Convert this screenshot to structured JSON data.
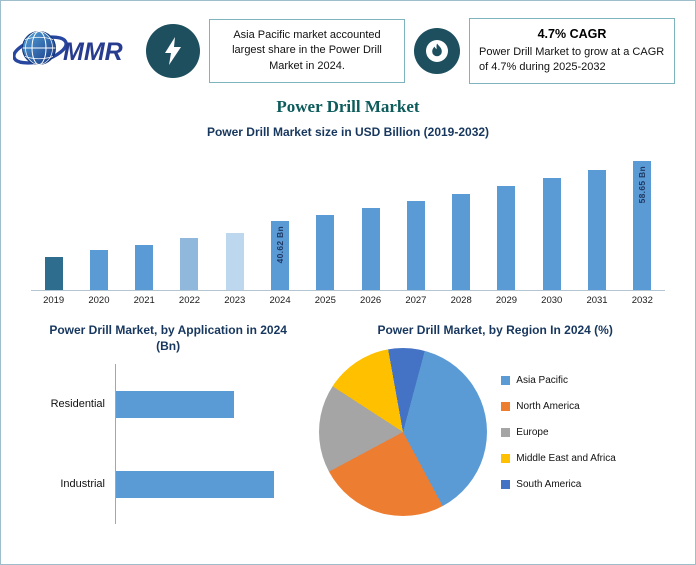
{
  "header": {
    "logo_text": "MMR",
    "left_note": "Asia Pacific market accounted largest share in the Power Drill Market in 2024.",
    "cagr_title": "4.7% CAGR",
    "cagr_note": "Power Drill Market to grow at a CAGR of 4.7% during 2025-2032"
  },
  "page_title": "Power Drill Market",
  "colors": {
    "badge_teal": "#1d4f5e",
    "title_teal": "#0d5c5c",
    "heading_navy": "#17375e",
    "bar_blue": "#5b9bd5"
  },
  "chart_data": [
    {
      "type": "bar",
      "title": "Power Drill Market size in USD Billion (2019-2032)",
      "categories": [
        "2019",
        "2020",
        "2021",
        "2022",
        "2023",
        "2024",
        "2025",
        "2026",
        "2027",
        "2028",
        "2029",
        "2030",
        "2031",
        "2032"
      ],
      "values": [
        30.0,
        31.9,
        33.6,
        35.5,
        37.0,
        40.62,
        42.53,
        44.53,
        46.62,
        48.81,
        51.11,
        53.51,
        56.02,
        58.65
      ],
      "bar_colors": [
        "#2e6d8e",
        "#5b9bd5",
        "#5b9bd5",
        "#8fb8dc",
        "#bdd7ee",
        "#5b9bd5",
        "#5b9bd5",
        "#5b9bd5",
        "#5b9bd5",
        "#5b9bd5",
        "#5b9bd5",
        "#5b9bd5",
        "#5b9bd5",
        "#5b9bd5"
      ],
      "bar_labels": {
        "2024": "40.62 Bn",
        "2032": "58.65 Bn"
      },
      "xlabel": "",
      "ylabel": "",
      "ylim": [
        20,
        62
      ],
      "grid": false,
      "value_axis_visible": false
    },
    {
      "type": "bar",
      "orientation": "horizontal",
      "title": "Power Drill Market, by Application in 2024 (Bn)",
      "categories": [
        "Residential",
        "Industrial"
      ],
      "values": [
        17.3,
        23.3
      ],
      "bar_color": "#5b9bd5",
      "value_axis_visible": false
    },
    {
      "type": "pie",
      "title": "Power Drill Market, by Region In 2024 (%)",
      "labels": [
        "Asia Pacific",
        "North America",
        "Europe",
        "Middle East and Africa",
        "South America"
      ],
      "values": [
        38,
        25,
        17,
        13,
        7
      ],
      "colors": [
        "#5b9bd5",
        "#ed7d31",
        "#a5a5a5",
        "#ffc000",
        "#4472c4"
      ],
      "legend_position": "right"
    }
  ]
}
